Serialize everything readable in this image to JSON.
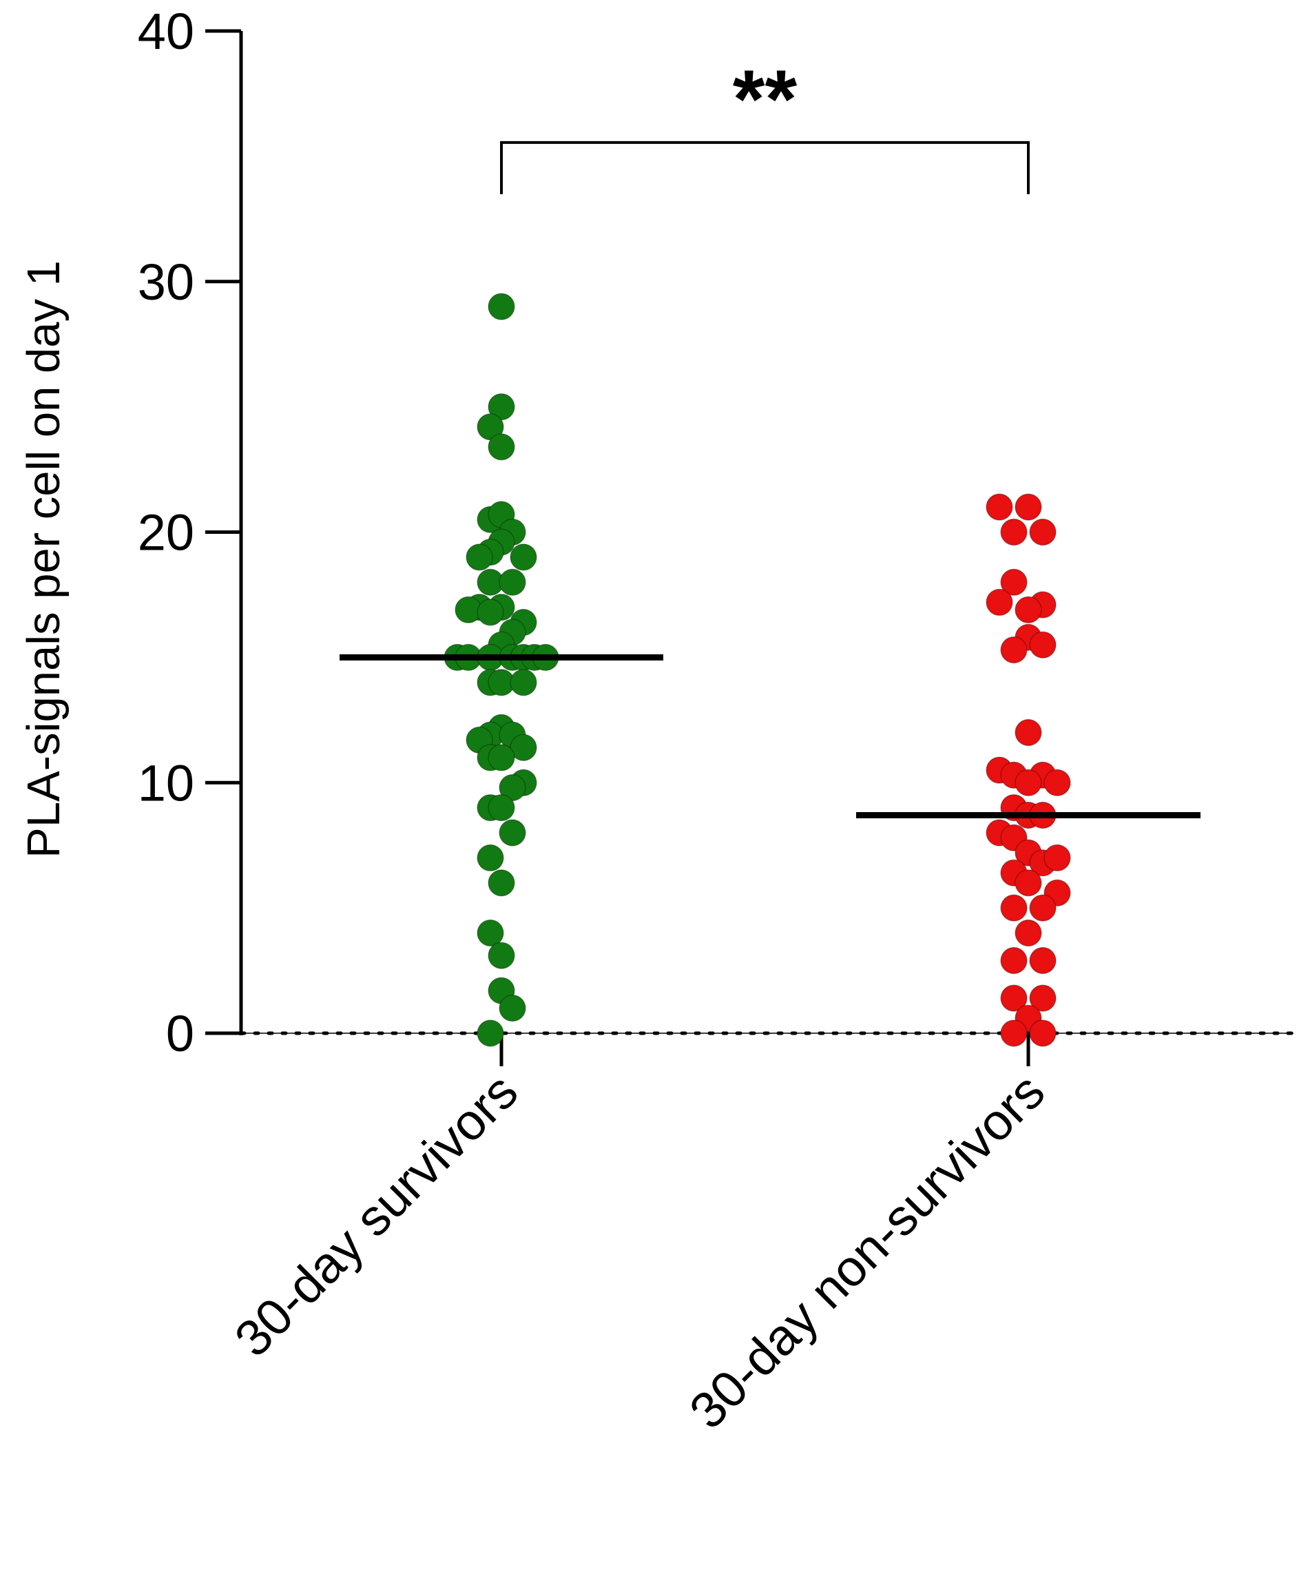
{
  "chart_data": {
    "type": "scatter",
    "title": "",
    "xlabel": "",
    "ylabel": "PLA-signals per cell on day 1",
    "ylim": [
      0,
      40
    ],
    "yticks": [
      0,
      10,
      20,
      30,
      40
    ],
    "categories": [
      "30-day survivors",
      "30-day non-survivors"
    ],
    "grid": false,
    "legend": "none",
    "baseline_style": "dotted",
    "series": [
      {
        "category": "30-day survivors",
        "color": "#127a12",
        "median": 15.0,
        "points": [
          {
            "x": 0.0,
            "y": 29.0
          },
          {
            "x": 0.0,
            "y": 25.0
          },
          {
            "x": -0.16,
            "y": 24.2
          },
          {
            "x": 0.0,
            "y": 23.4
          },
          {
            "x": -0.16,
            "y": 20.5
          },
          {
            "x": 0.0,
            "y": 20.7
          },
          {
            "x": 0.16,
            "y": 20.0
          },
          {
            "x": 0.0,
            "y": 19.6
          },
          {
            "x": -0.16,
            "y": 19.2
          },
          {
            "x": -0.32,
            "y": 19.0
          },
          {
            "x": 0.32,
            "y": 19.0
          },
          {
            "x": -0.16,
            "y": 18.0
          },
          {
            "x": 0.16,
            "y": 18.0
          },
          {
            "x": -0.32,
            "y": 17.0
          },
          {
            "x": 0.0,
            "y": 17.0
          },
          {
            "x": -0.48,
            "y": 16.9
          },
          {
            "x": -0.16,
            "y": 16.8
          },
          {
            "x": 0.32,
            "y": 16.4
          },
          {
            "x": 0.16,
            "y": 16.0
          },
          {
            "x": 0.0,
            "y": 15.5
          },
          {
            "x": -0.64,
            "y": 15.0
          },
          {
            "x": -0.48,
            "y": 15.0
          },
          {
            "x": -0.16,
            "y": 15.0
          },
          {
            "x": 0.16,
            "y": 15.0
          },
          {
            "x": 0.32,
            "y": 15.0
          },
          {
            "x": 0.48,
            "y": 15.0
          },
          {
            "x": 0.64,
            "y": 15.0
          },
          {
            "x": -0.16,
            "y": 14.0
          },
          {
            "x": 0.0,
            "y": 14.0
          },
          {
            "x": 0.32,
            "y": 14.0
          },
          {
            "x": 0.0,
            "y": 12.2
          },
          {
            "x": -0.16,
            "y": 11.9
          },
          {
            "x": 0.16,
            "y": 11.9
          },
          {
            "x": -0.32,
            "y": 11.7
          },
          {
            "x": 0.32,
            "y": 11.4
          },
          {
            "x": -0.16,
            "y": 11.0
          },
          {
            "x": 0.0,
            "y": 11.0
          },
          {
            "x": 0.32,
            "y": 10.0
          },
          {
            "x": 0.16,
            "y": 9.8
          },
          {
            "x": -0.16,
            "y": 9.0
          },
          {
            "x": 0.0,
            "y": 9.0
          },
          {
            "x": 0.16,
            "y": 8.0
          },
          {
            "x": -0.16,
            "y": 7.0
          },
          {
            "x": 0.0,
            "y": 6.0
          },
          {
            "x": -0.16,
            "y": 4.0
          },
          {
            "x": 0.0,
            "y": 3.1
          },
          {
            "x": 0.0,
            "y": 1.7
          },
          {
            "x": 0.16,
            "y": 1.0
          },
          {
            "x": -0.16,
            "y": 0.0
          }
        ]
      },
      {
        "category": "30-day non-survivors",
        "color": "#e81010",
        "median": 8.7,
        "points": [
          {
            "x": -0.42,
            "y": 21.0
          },
          {
            "x": 0.0,
            "y": 21.0
          },
          {
            "x": -0.21,
            "y": 20.0
          },
          {
            "x": 0.21,
            "y": 20.0
          },
          {
            "x": -0.21,
            "y": 18.0
          },
          {
            "x": -0.42,
            "y": 17.2
          },
          {
            "x": 0.21,
            "y": 17.1
          },
          {
            "x": 0.0,
            "y": 16.9
          },
          {
            "x": 0.0,
            "y": 15.8
          },
          {
            "x": 0.21,
            "y": 15.5
          },
          {
            "x": -0.21,
            "y": 15.3
          },
          {
            "x": 0.0,
            "y": 12.0
          },
          {
            "x": -0.42,
            "y": 10.5
          },
          {
            "x": -0.21,
            "y": 10.3
          },
          {
            "x": 0.21,
            "y": 10.3
          },
          {
            "x": 0.0,
            "y": 10.0
          },
          {
            "x": 0.42,
            "y": 10.0
          },
          {
            "x": -0.21,
            "y": 9.0
          },
          {
            "x": 0.0,
            "y": 8.7
          },
          {
            "x": 0.21,
            "y": 8.7
          },
          {
            "x": -0.42,
            "y": 8.0
          },
          {
            "x": -0.21,
            "y": 7.8
          },
          {
            "x": 0.0,
            "y": 7.2
          },
          {
            "x": 0.21,
            "y": 6.8
          },
          {
            "x": 0.42,
            "y": 7.0
          },
          {
            "x": -0.21,
            "y": 6.4
          },
          {
            "x": 0.0,
            "y": 6.0
          },
          {
            "x": 0.42,
            "y": 5.6
          },
          {
            "x": -0.21,
            "y": 5.0
          },
          {
            "x": 0.21,
            "y": 5.0
          },
          {
            "x": 0.0,
            "y": 4.0
          },
          {
            "x": -0.21,
            "y": 2.9
          },
          {
            "x": 0.21,
            "y": 2.9
          },
          {
            "x": -0.21,
            "y": 1.4
          },
          {
            "x": 0.21,
            "y": 1.4
          },
          {
            "x": 0.0,
            "y": 0.6
          },
          {
            "x": -0.21,
            "y": 0.0
          },
          {
            "x": 0.21,
            "y": 0.0
          }
        ]
      }
    ],
    "annotations": [
      {
        "type": "significance-bracket",
        "between": [
          "30-day survivors",
          "30-day non-survivors"
        ],
        "y": 35,
        "label": "**"
      }
    ]
  }
}
